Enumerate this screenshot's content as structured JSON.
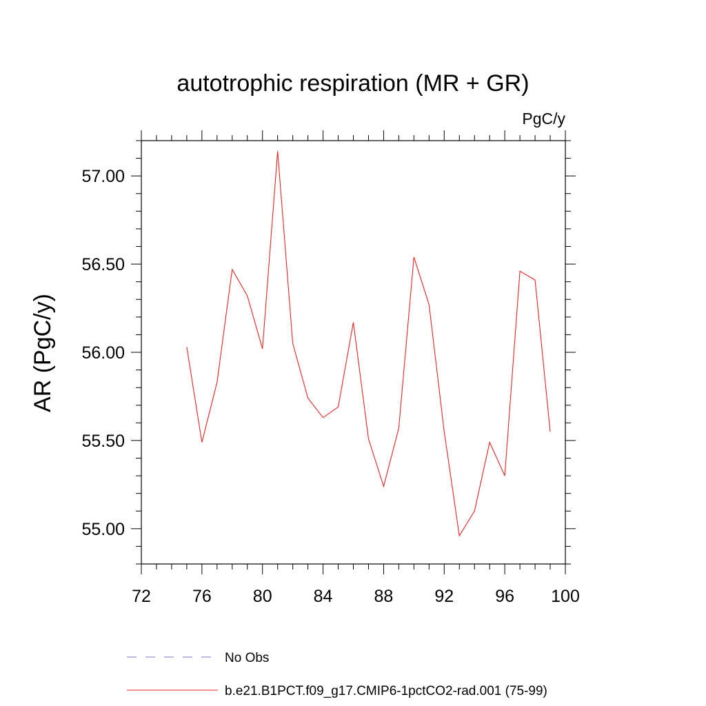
{
  "chart_data": {
    "type": "line",
    "title": "autotrophic respiration (MR + GR)",
    "units_label": "PgC/y",
    "ylabel": "AR  (PgC/y)",
    "xlabel": "",
    "xlim": [
      72,
      100
    ],
    "ylim": [
      54.8,
      57.2
    ],
    "x_ticks": [
      72,
      76,
      80,
      84,
      88,
      92,
      96,
      100
    ],
    "x_tick_labels": [
      "72",
      "76",
      "80",
      "84",
      "88",
      "92",
      "96",
      "100"
    ],
    "y_ticks": [
      55.0,
      55.5,
      56.0,
      56.5,
      57.0
    ],
    "y_tick_labels": [
      "55.00",
      "55.50",
      "56.00",
      "56.50",
      "57.00"
    ],
    "grid": false,
    "legend_position": "bottom",
    "series": [
      {
        "name": "No Obs",
        "color": "#7b74c6",
        "dash": true,
        "x": [],
        "y": []
      },
      {
        "name": "b.e21.B1PCT.f09_g17.CMIP6-1pctCO2-rad.001 (75-99)",
        "color": "#e8221f",
        "dash": false,
        "x": [
          75,
          76,
          77,
          78,
          79,
          80,
          81,
          82,
          83,
          84,
          85,
          86,
          87,
          88,
          89,
          90,
          91,
          92,
          93,
          94,
          95,
          96,
          97,
          98,
          99
        ],
        "y": [
          56.03,
          55.49,
          55.83,
          56.47,
          56.32,
          56.02,
          57.14,
          56.05,
          55.74,
          55.63,
          55.69,
          56.17,
          55.51,
          55.24,
          55.57,
          56.54,
          56.27,
          55.55,
          54.96,
          55.1,
          55.49,
          55.3,
          56.46,
          56.41,
          55.55
        ]
      }
    ]
  }
}
